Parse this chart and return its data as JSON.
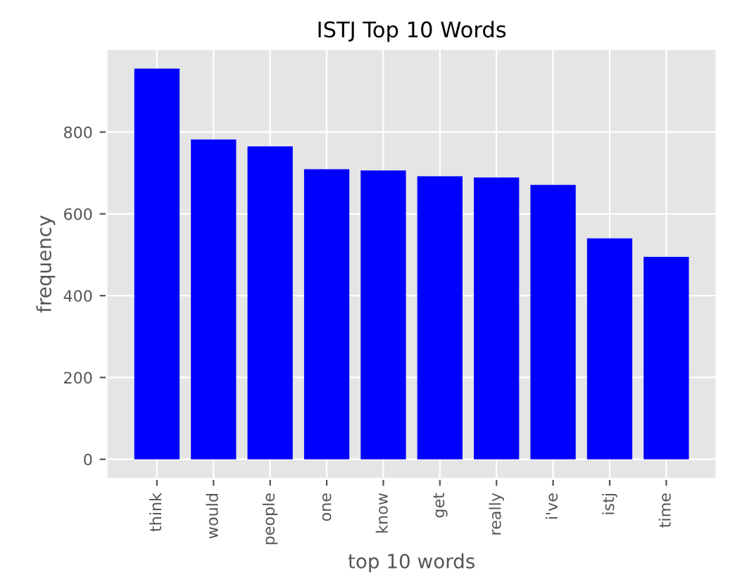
{
  "chart_data": {
    "type": "bar",
    "title": "ISTJ Top 10 Words",
    "xlabel": "top 10 words",
    "ylabel": "frequency",
    "categories": [
      "think",
      "would",
      "people",
      "one",
      "know",
      "get",
      "really",
      "i've",
      "istj",
      "time"
    ],
    "values": [
      955,
      782,
      765,
      709,
      706,
      692,
      689,
      671,
      540,
      495
    ],
    "color": "#0000ff",
    "ylim": [
      -48,
      1003
    ],
    "yticks": [
      0,
      200,
      400,
      600,
      800
    ],
    "grid": true
  }
}
